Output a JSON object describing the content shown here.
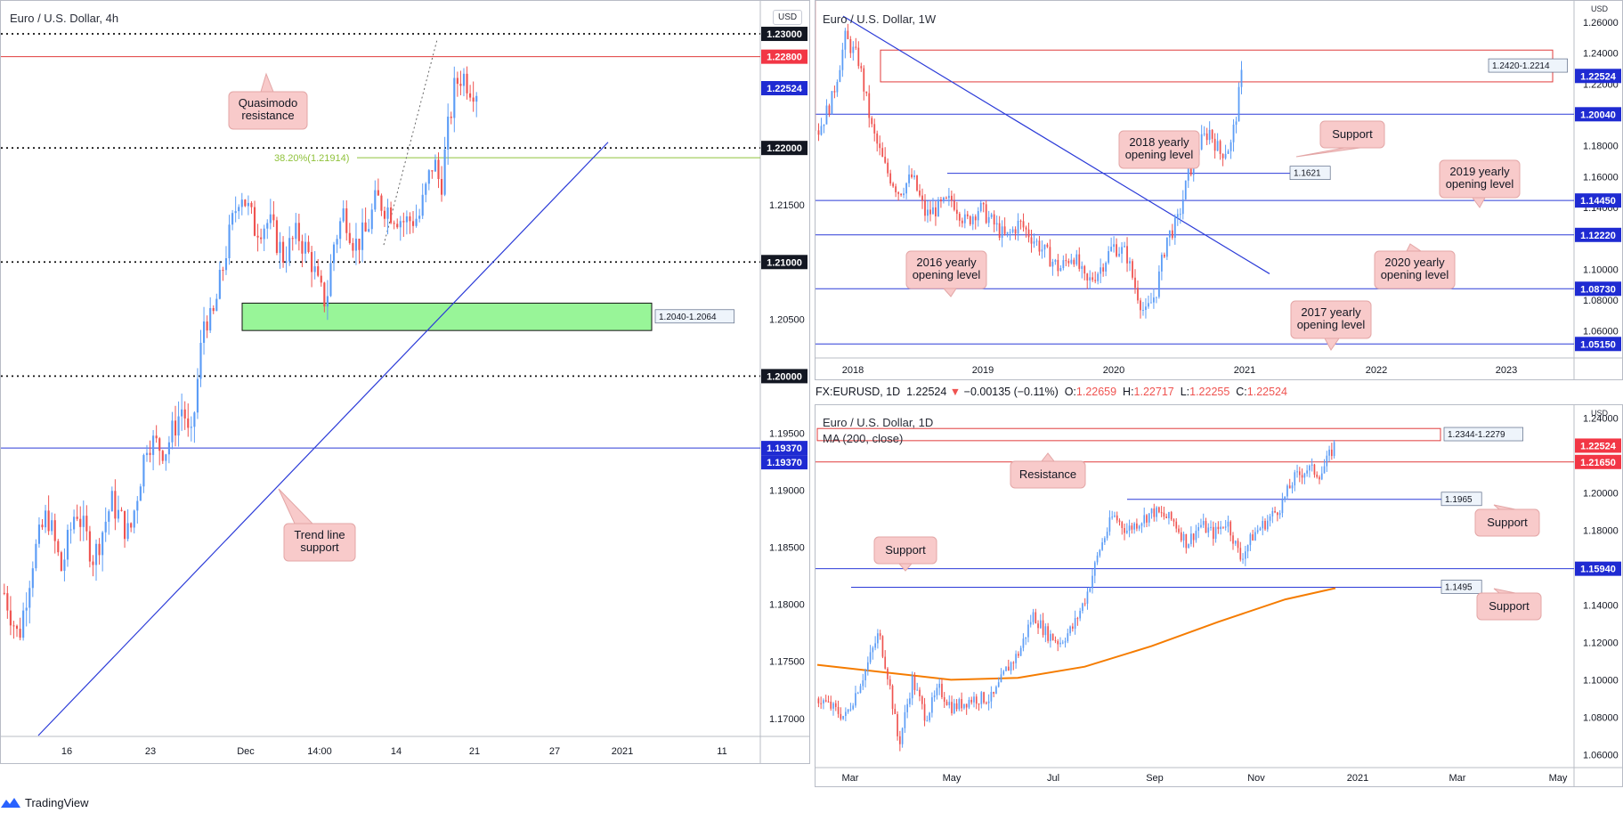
{
  "colors": {
    "bull": "#5b9cf6",
    "bear": "#ef5350",
    "blue_line": "#2b3bd8",
    "red_line": "#e03b3b",
    "green_zone": "#98f598",
    "callout_fill": "#f8caca",
    "callout_stroke": "#e3a6a6",
    "fib": "#8fc23b",
    "ma": "#f57c00",
    "tag_blue": "#1f2bd2",
    "tag_red": "#f23645"
  },
  "panels": [
    {
      "id": "h4",
      "title": "Euro / U.S. Dollar, 4h",
      "currency_badge": "USD",
      "y_range": [
        1.1685,
        1.2325
      ],
      "axis_ticks": [
        {
          "value": 1.17,
          "label": "1.17000"
        },
        {
          "value": 1.175,
          "label": "1.17500"
        },
        {
          "value": 1.18,
          "label": "1.18000"
        },
        {
          "value": 1.185,
          "label": "1.18500"
        },
        {
          "value": 1.19,
          "label": "1.19000"
        },
        {
          "value": 1.195,
          "label": "1.19500"
        },
        {
          "value": 1.205,
          "label": "1.20500"
        },
        {
          "value": 1.215,
          "label": "1.21500"
        }
      ],
      "x_labels": [
        "16",
        "23",
        "Dec",
        "14:00",
        "14",
        "21",
        "27",
        "2021",
        "11"
      ],
      "levels": [
        {
          "value": 1.23,
          "style": "dotted",
          "tag": "1.23000",
          "tag_style": "black"
        },
        {
          "value": 1.228,
          "style": "red",
          "tag": "1.22800",
          "tag_style": "red"
        },
        {
          "value": 1.22,
          "style": "dotted",
          "tag": "1.22000",
          "tag_style": "black"
        },
        {
          "value": 1.21,
          "style": "dotted",
          "tag": "1.21000",
          "tag_style": "black"
        },
        {
          "value": 1.2,
          "style": "dotted",
          "tag": "1.20000",
          "tag_style": "black"
        },
        {
          "value": 1.1937,
          "style": "blue",
          "tag": "1.19370",
          "tag_style": "blue"
        }
      ],
      "extra_tags": [
        {
          "value": 1.22524,
          "label": "1.22524",
          "tag_style": "blue"
        },
        {
          "value": 1.1937,
          "label": "1.19370",
          "tag_style": "blue",
          "offset": 1
        }
      ],
      "fib_label": "38.20%(1.21914)",
      "fib_value": 1.21914,
      "zone": {
        "low": 1.204,
        "high": 1.2064,
        "label": "1.2040-1.2064"
      },
      "annotations": [
        "Quasimodo resistance",
        "Trend line support"
      ],
      "path": [
        [
          0,
          1.181
        ],
        [
          4,
          1.177
        ],
        [
          8,
          1.184
        ],
        [
          12,
          1.188
        ],
        [
          16,
          1.183
        ],
        [
          20,
          1.1885
        ],
        [
          25,
          1.184
        ],
        [
          30,
          1.189
        ],
        [
          35,
          1.186
        ],
        [
          40,
          1.1945
        ],
        [
          45,
          1.1935
        ],
        [
          50,
          1.1975
        ],
        [
          52,
          1.1935
        ],
        [
          54,
          1.1995
        ],
        [
          56,
          1.2055
        ],
        [
          58,
          1.2045
        ],
        [
          62,
          1.211
        ],
        [
          66,
          1.2165
        ],
        [
          70,
          1.213
        ],
        [
          74,
          1.2135
        ],
        [
          78,
          1.2105
        ],
        [
          82,
          1.2125
        ],
        [
          86,
          1.21
        ],
        [
          88,
          1.2075
        ],
        [
          90,
          1.2065
        ],
        [
          92,
          1.2115
        ],
        [
          95,
          1.2145
        ],
        [
          98,
          1.2115
        ],
        [
          101,
          1.2125
        ],
        [
          104,
          1.2155
        ],
        [
          108,
          1.2145
        ],
        [
          112,
          1.2135
        ],
        [
          116,
          1.214
        ],
        [
          118,
          1.2165
        ],
        [
          120,
          1.219
        ],
        [
          122,
          1.2165
        ],
        [
          124,
          1.2215
        ],
        [
          126,
          1.2255
        ],
        [
          128,
          1.2265
        ],
        [
          130,
          1.2255
        ],
        [
          132,
          1.2252
        ]
      ]
    },
    {
      "id": "w1",
      "title": "Euro / U.S. Dollar, 1W",
      "currency_badge": "USD",
      "y_range": [
        1.043,
        1.271
      ],
      "axis_ticks": [
        {
          "value": 1.06,
          "label": "1.06000"
        },
        {
          "value": 1.08,
          "label": "1.08000"
        },
        {
          "value": 1.1,
          "label": "1.10000"
        },
        {
          "value": 1.14,
          "label": "1.14000"
        },
        {
          "value": 1.16,
          "label": "1.16000"
        },
        {
          "value": 1.18,
          "label": "1.18000"
        },
        {
          "value": 1.22,
          "label": "1.22000"
        },
        {
          "value": 1.24,
          "label": "1.24000"
        },
        {
          "value": 1.26,
          "label": "1.26000"
        }
      ],
      "x_labels": [
        "2018",
        "2019",
        "2020",
        "2021",
        "2022",
        "2023"
      ],
      "levels": [
        {
          "value": 1.2004,
          "style": "blue",
          "tag": "1.20040",
          "tag_style": "blue"
        },
        {
          "value": 1.1445,
          "style": "blue",
          "tag": "1.14450",
          "tag_style": "blue"
        },
        {
          "value": 1.1222,
          "style": "blue",
          "tag": "1.12220",
          "tag_style": "blue"
        },
        {
          "value": 1.0873,
          "style": "blue",
          "tag": "1.08730",
          "tag_style": "blue"
        },
        {
          "value": 1.0515,
          "style": "blue",
          "tag": "1.05150",
          "tag_style": "blue"
        }
      ],
      "extra_tags": [
        {
          "value": 1.22524,
          "label": "1.22524",
          "tag_style": "blue"
        }
      ],
      "zone": {
        "low": 1.2214,
        "high": 1.242,
        "label": "1.2420-1.2214"
      },
      "support_line": {
        "value": 1.1621,
        "label": "1.1621"
      },
      "annotations": [
        "2018 yearly opening level",
        "Support",
        "2019 yearly opening level",
        "2016 yearly opening level",
        "2020 yearly opening level",
        "2017 yearly opening level"
      ],
      "path": [
        [
          0,
          1.19
        ],
        [
          5,
          1.21
        ],
        [
          10,
          1.25
        ],
        [
          15,
          1.235
        ],
        [
          20,
          1.19
        ],
        [
          25,
          1.165
        ],
        [
          30,
          1.15
        ],
        [
          35,
          1.16
        ],
        [
          40,
          1.135
        ],
        [
          45,
          1.14
        ],
        [
          50,
          1.145
        ],
        [
          55,
          1.13
        ],
        [
          60,
          1.14
        ],
        [
          65,
          1.13
        ],
        [
          70,
          1.12
        ],
        [
          75,
          1.13
        ],
        [
          80,
          1.12
        ],
        [
          85,
          1.11
        ],
        [
          90,
          1.1
        ],
        [
          95,
          1.11
        ],
        [
          100,
          1.09
        ],
        [
          105,
          1.1
        ],
        [
          110,
          1.115
        ],
        [
          115,
          1.11
        ],
        [
          118,
          1.09
        ],
        [
          122,
          1.07
        ],
        [
          126,
          1.085
        ],
        [
          130,
          1.12
        ],
        [
          134,
          1.13
        ],
        [
          138,
          1.16
        ],
        [
          142,
          1.18
        ],
        [
          146,
          1.19
        ],
        [
          150,
          1.175
        ],
        [
          154,
          1.18
        ],
        [
          156,
          1.2
        ],
        [
          158,
          1.2252
        ]
      ]
    },
    {
      "id": "d1",
      "title": "Euro / U.S. Dollar, 1D",
      "currency_badge": "USD",
      "ma_label": "MA (200, close)",
      "y_range": [
        1.0535,
        1.2445
      ],
      "axis_ticks": [
        {
          "value": 1.06,
          "label": "1.06000"
        },
        {
          "value": 1.08,
          "label": "1.08000"
        },
        {
          "value": 1.1,
          "label": "1.10000"
        },
        {
          "value": 1.12,
          "label": "1.12000"
        },
        {
          "value": 1.14,
          "label": "1.14000"
        },
        {
          "value": 1.18,
          "label": "1.18000"
        },
        {
          "value": 1.2,
          "label": "1.20000"
        },
        {
          "value": 1.24,
          "label": "1.24000"
        }
      ],
      "x_labels": [
        "Mar",
        "May",
        "Jul",
        "Sep",
        "Nov",
        "2021",
        "Mar",
        "May"
      ],
      "levels": [
        {
          "value": 1.2165,
          "style": "red",
          "tag": "1.21650",
          "tag_style": "red"
        },
        {
          "value": 1.1594,
          "style": "blue",
          "tag": "1.15940",
          "tag_style": "blue"
        }
      ],
      "extra_tags": [
        {
          "value": 1.22524,
          "label": "1.22524",
          "tag_style": "red"
        }
      ],
      "zone": {
        "low": 1.2279,
        "high": 1.2344,
        "label": "1.2344-1.2279"
      },
      "support_lines": [
        {
          "value": 1.1965,
          "label": "1.1965"
        },
        {
          "value": 1.1495,
          "label": "1.1495"
        }
      ],
      "annotations": [
        "Resistance",
        "Support",
        "Support",
        "Support"
      ],
      "ma_path": [
        [
          0,
          1.108
        ],
        [
          20,
          1.104
        ],
        [
          40,
          1.1
        ],
        [
          60,
          1.101
        ],
        [
          80,
          1.107
        ],
        [
          100,
          1.118
        ],
        [
          120,
          1.131
        ],
        [
          140,
          1.143
        ],
        [
          155,
          1.149
        ]
      ],
      "path": [
        [
          0,
          1.09
        ],
        [
          8,
          1.08
        ],
        [
          14,
          1.105
        ],
        [
          18,
          1.125
        ],
        [
          21,
          1.1
        ],
        [
          24,
          1.065
        ],
        [
          28,
          1.1
        ],
        [
          32,
          1.08
        ],
        [
          36,
          1.095
        ],
        [
          40,
          1.085
        ],
        [
          46,
          1.09
        ],
        [
          52,
          1.09
        ],
        [
          56,
          1.105
        ],
        [
          60,
          1.115
        ],
        [
          64,
          1.135
        ],
        [
          68,
          1.125
        ],
        [
          72,
          1.12
        ],
        [
          76,
          1.128
        ],
        [
          80,
          1.145
        ],
        [
          84,
          1.17
        ],
        [
          88,
          1.188
        ],
        [
          92,
          1.18
        ],
        [
          96,
          1.185
        ],
        [
          100,
          1.19
        ],
        [
          106,
          1.185
        ],
        [
          110,
          1.173
        ],
        [
          114,
          1.183
        ],
        [
          118,
          1.178
        ],
        [
          122,
          1.185
        ],
        [
          126,
          1.165
        ],
        [
          130,
          1.178
        ],
        [
          134,
          1.185
        ],
        [
          138,
          1.193
        ],
        [
          142,
          1.2075
        ],
        [
          146,
          1.213
        ],
        [
          150,
          1.21
        ],
        [
          154,
          1.2252
        ]
      ]
    }
  ],
  "ohlc": {
    "symbol": "FX:EURUSD, 1D",
    "last": "1.22524",
    "arrow": "▼",
    "change": "−0.00135 (−0.11%)",
    "o_label": "O:",
    "o": "1.22659",
    "h_label": "H:",
    "h": "1.22717",
    "l_label": "L:",
    "l": "1.22255",
    "c_label": "C:",
    "c": "1.22524"
  },
  "brand": "TradingView"
}
